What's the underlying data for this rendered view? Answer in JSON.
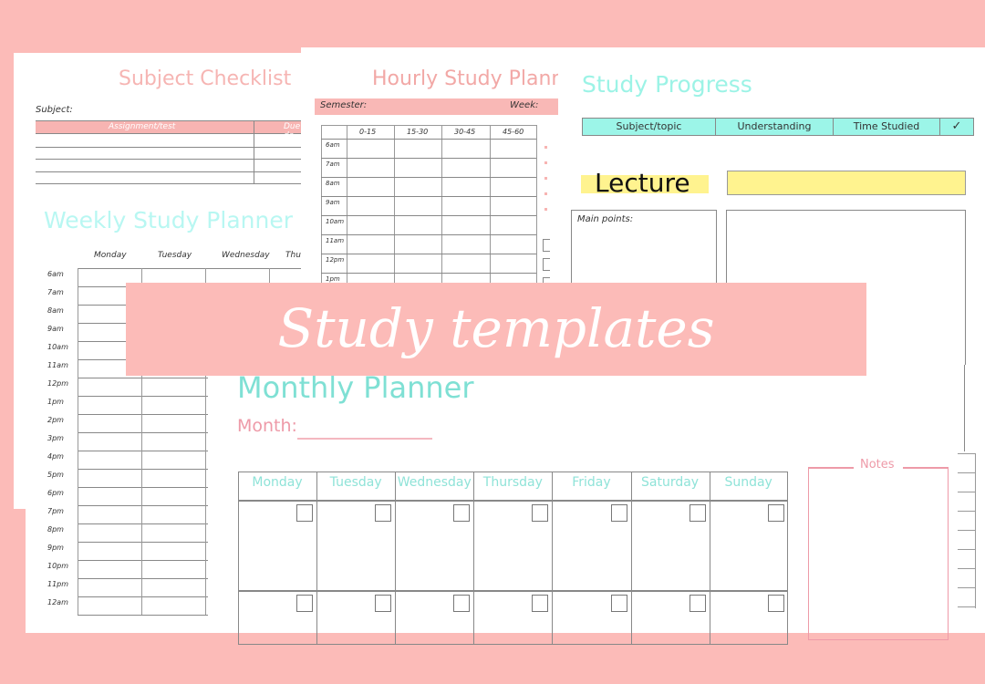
{
  "colors": {
    "background": "#fcbbb8",
    "pink": "#f7b4b2",
    "aqua": "#9cf5e8",
    "yellow": "#fff38f",
    "banner": "#fcbbb8"
  },
  "subject_checklist": {
    "title": "Subject Checklist",
    "subject_label": "Subject:",
    "columns": [
      "Assignment/test",
      "Due da"
    ]
  },
  "weekly": {
    "title": "Weekly Study Planner",
    "days": [
      "Monday",
      "Tuesday",
      "Wednesday",
      "Thur"
    ],
    "times": [
      "6am",
      "7am",
      "8am",
      "9am",
      "10am",
      "11am",
      "12pm",
      "1pm",
      "2pm",
      "3pm",
      "4pm",
      "5pm",
      "6pm",
      "7pm",
      "8pm",
      "9pm",
      "10pm",
      "11pm",
      "12am"
    ]
  },
  "hourly": {
    "title": "Hourly Study Plann",
    "semester_label": "Semester:",
    "week_label": "Week:",
    "columns": [
      "0-15",
      "15-30",
      "30-45",
      "45-60"
    ],
    "times": [
      "6am",
      "7am",
      "8am",
      "9am",
      "10am",
      "11am",
      "12pm",
      "1pm"
    ]
  },
  "progress": {
    "title": "Study Progress",
    "columns": [
      "Subject/topic",
      "Understanding",
      "Time Studied",
      "✓"
    ]
  },
  "lecture": {
    "title": "Lecture",
    "main_points_label": "Main points:"
  },
  "banner": {
    "text": "Study templates"
  },
  "monthly": {
    "title": "Monthly Planner",
    "month_label": "Month:",
    "days": [
      "Monday",
      "Tuesday",
      "Wednesday",
      "Thursday",
      "Friday",
      "Saturday",
      "Sunday"
    ],
    "notes_label": "Notes"
  }
}
